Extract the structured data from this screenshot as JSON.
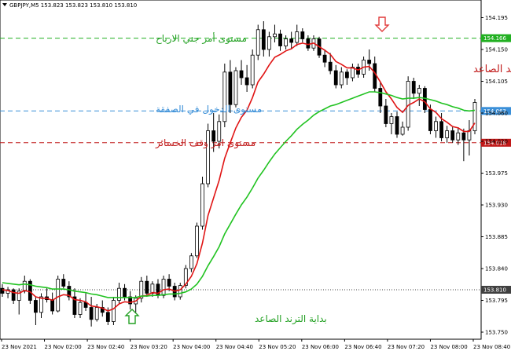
{
  "header": {
    "icon": "chart-menu-icon",
    "title": "GBPJPY,M5 153.823 153.823 153.810 153.810"
  },
  "colors": {
    "bull": "#ffffff",
    "bear": "#000000",
    "ma_fast": "#e01414",
    "ma_slow": "#22c322",
    "tp_line": "#22b022",
    "entry_line": "#3a8fd8",
    "sl_line": "#c01818",
    "current_price": "#404040"
  },
  "chart_data": {
    "type": "candlestick",
    "symbol": "GBPJPY",
    "timeframe": "M5",
    "ylim": [
      153.74,
      154.22
    ],
    "y_ticks": [
      153.75,
      153.795,
      153.84,
      153.885,
      153.93,
      153.975,
      154.02,
      154.06,
      154.105,
      154.15,
      154.195
    ],
    "x_ticks": [
      "23 Nov 2021",
      "23 Nov 02:00",
      "23 Nov 02:40",
      "23 Nov 03:20",
      "23 Nov 04:00",
      "23 Nov 04:40",
      "23 Nov 05:20",
      "23 Nov 06:00",
      "23 Nov 06:40",
      "23 Nov 07:20",
      "23 Nov 08:00",
      "23 Nov 08:40"
    ],
    "candles": [
      {
        "o": 153.812,
        "h": 153.818,
        "l": 153.8,
        "c": 153.805
      },
      {
        "o": 153.805,
        "h": 153.814,
        "l": 153.798,
        "c": 153.81
      },
      {
        "o": 153.81,
        "h": 153.812,
        "l": 153.79,
        "c": 153.795
      },
      {
        "o": 153.795,
        "h": 153.812,
        "l": 153.775,
        "c": 153.808
      },
      {
        "o": 153.808,
        "h": 153.83,
        "l": 153.805,
        "c": 153.822
      },
      {
        "o": 153.822,
        "h": 153.825,
        "l": 153.79,
        "c": 153.795
      },
      {
        "o": 153.795,
        "h": 153.8,
        "l": 153.76,
        "c": 153.778
      },
      {
        "o": 153.778,
        "h": 153.805,
        "l": 153.77,
        "c": 153.8
      },
      {
        "o": 153.8,
        "h": 153.812,
        "l": 153.792,
        "c": 153.796
      },
      {
        "o": 153.796,
        "h": 153.806,
        "l": 153.775,
        "c": 153.78
      },
      {
        "o": 153.78,
        "h": 153.83,
        "l": 153.778,
        "c": 153.825
      },
      {
        "o": 153.825,
        "h": 153.832,
        "l": 153.812,
        "c": 153.815
      },
      {
        "o": 153.815,
        "h": 153.822,
        "l": 153.795,
        "c": 153.8
      },
      {
        "o": 153.8,
        "h": 153.812,
        "l": 153.77,
        "c": 153.775
      },
      {
        "o": 153.775,
        "h": 153.798,
        "l": 153.77,
        "c": 153.792
      },
      {
        "o": 153.792,
        "h": 153.805,
        "l": 153.78,
        "c": 153.785
      },
      {
        "o": 153.785,
        "h": 153.8,
        "l": 153.758,
        "c": 153.768
      },
      {
        "o": 153.768,
        "h": 153.79,
        "l": 153.765,
        "c": 153.785
      },
      {
        "o": 153.785,
        "h": 153.795,
        "l": 153.772,
        "c": 153.778
      },
      {
        "o": 153.778,
        "h": 153.785,
        "l": 153.76,
        "c": 153.765
      },
      {
        "o": 153.765,
        "h": 153.8,
        "l": 153.76,
        "c": 153.795
      },
      {
        "o": 153.795,
        "h": 153.82,
        "l": 153.79,
        "c": 153.812
      },
      {
        "o": 153.812,
        "h": 153.818,
        "l": 153.795,
        "c": 153.8
      },
      {
        "o": 153.8,
        "h": 153.808,
        "l": 153.782,
        "c": 153.79
      },
      {
        "o": 153.79,
        "h": 153.802,
        "l": 153.778,
        "c": 153.798
      },
      {
        "o": 153.798,
        "h": 153.828,
        "l": 153.792,
        "c": 153.822
      },
      {
        "o": 153.822,
        "h": 153.83,
        "l": 153.8,
        "c": 153.805
      },
      {
        "o": 153.805,
        "h": 153.822,
        "l": 153.8,
        "c": 153.818
      },
      {
        "o": 153.818,
        "h": 153.825,
        "l": 153.798,
        "c": 153.802
      },
      {
        "o": 153.802,
        "h": 153.83,
        "l": 153.798,
        "c": 153.825
      },
      {
        "o": 153.825,
        "h": 153.832,
        "l": 153.808,
        "c": 153.815
      },
      {
        "o": 153.815,
        "h": 153.82,
        "l": 153.795,
        "c": 153.8
      },
      {
        "o": 153.8,
        "h": 153.82,
        "l": 153.796,
        "c": 153.816
      },
      {
        "o": 153.816,
        "h": 153.845,
        "l": 153.812,
        "c": 153.84
      },
      {
        "o": 153.84,
        "h": 153.862,
        "l": 153.835,
        "c": 153.858
      },
      {
        "o": 153.858,
        "h": 153.905,
        "l": 153.855,
        "c": 153.9
      },
      {
        "o": 153.9,
        "h": 153.97,
        "l": 153.895,
        "c": 153.96
      },
      {
        "o": 153.96,
        "h": 154.045,
        "l": 153.955,
        "c": 154.035
      },
      {
        "o": 154.035,
        "h": 154.06,
        "l": 154.005,
        "c": 154.02
      },
      {
        "o": 154.02,
        "h": 154.058,
        "l": 154.01,
        "c": 154.048
      },
      {
        "o": 154.048,
        "h": 154.13,
        "l": 154.04,
        "c": 154.118
      },
      {
        "o": 154.118,
        "h": 154.135,
        "l": 154.06,
        "c": 154.072
      },
      {
        "o": 154.072,
        "h": 154.125,
        "l": 154.068,
        "c": 154.12
      },
      {
        "o": 154.12,
        "h": 154.135,
        "l": 154.1,
        "c": 154.11
      },
      {
        "o": 154.11,
        "h": 154.128,
        "l": 154.09,
        "c": 154.1
      },
      {
        "o": 154.1,
        "h": 154.15,
        "l": 154.095,
        "c": 154.142
      },
      {
        "o": 154.142,
        "h": 154.185,
        "l": 154.135,
        "c": 154.178
      },
      {
        "o": 154.178,
        "h": 154.19,
        "l": 154.14,
        "c": 154.15
      },
      {
        "o": 154.15,
        "h": 154.175,
        "l": 154.14,
        "c": 154.168
      },
      {
        "o": 154.168,
        "h": 154.185,
        "l": 154.16,
        "c": 154.172
      },
      {
        "o": 154.172,
        "h": 154.178,
        "l": 154.148,
        "c": 154.155
      },
      {
        "o": 154.155,
        "h": 154.17,
        "l": 154.15,
        "c": 154.165
      },
      {
        "o": 154.165,
        "h": 154.175,
        "l": 154.15,
        "c": 154.16
      },
      {
        "o": 154.16,
        "h": 154.185,
        "l": 154.155,
        "c": 154.175
      },
      {
        "o": 154.175,
        "h": 154.18,
        "l": 154.16,
        "c": 154.165
      },
      {
        "o": 154.165,
        "h": 154.17,
        "l": 154.148,
        "c": 154.152
      },
      {
        "o": 154.152,
        "h": 154.17,
        "l": 154.148,
        "c": 154.165
      },
      {
        "o": 154.165,
        "h": 154.168,
        "l": 154.138,
        "c": 154.142
      },
      {
        "o": 154.142,
        "h": 154.15,
        "l": 154.125,
        "c": 154.132
      },
      {
        "o": 154.132,
        "h": 154.145,
        "l": 154.115,
        "c": 154.12
      },
      {
        "o": 154.12,
        "h": 154.128,
        "l": 154.095,
        "c": 154.1
      },
      {
        "o": 154.1,
        "h": 154.125,
        "l": 154.095,
        "c": 154.118
      },
      {
        "o": 154.118,
        "h": 154.122,
        "l": 154.1,
        "c": 154.11
      },
      {
        "o": 154.11,
        "h": 154.13,
        "l": 154.105,
        "c": 154.125
      },
      {
        "o": 154.125,
        "h": 154.13,
        "l": 154.11,
        "c": 154.115
      },
      {
        "o": 154.115,
        "h": 154.14,
        "l": 154.11,
        "c": 154.135
      },
      {
        "o": 154.135,
        "h": 154.15,
        "l": 154.12,
        "c": 154.13
      },
      {
        "o": 154.13,
        "h": 154.14,
        "l": 154.09,
        "c": 154.095
      },
      {
        "o": 154.095,
        "h": 154.105,
        "l": 154.06,
        "c": 154.07
      },
      {
        "o": 154.07,
        "h": 154.08,
        "l": 154.04,
        "c": 154.045
      },
      {
        "o": 154.045,
        "h": 154.06,
        "l": 154.03,
        "c": 154.055
      },
      {
        "o": 154.055,
        "h": 154.062,
        "l": 154.025,
        "c": 154.03
      },
      {
        "o": 154.03,
        "h": 154.048,
        "l": 154.028,
        "c": 154.04
      },
      {
        "o": 154.04,
        "h": 154.112,
        "l": 154.035,
        "c": 154.105
      },
      {
        "o": 154.105,
        "h": 154.11,
        "l": 154.08,
        "c": 154.088
      },
      {
        "o": 154.088,
        "h": 154.1,
        "l": 154.07,
        "c": 154.095
      },
      {
        "o": 154.095,
        "h": 154.098,
        "l": 154.06,
        "c": 154.065
      },
      {
        "o": 154.065,
        "h": 154.072,
        "l": 154.03,
        "c": 154.035
      },
      {
        "o": 154.035,
        "h": 154.055,
        "l": 154.025,
        "c": 154.048
      },
      {
        "o": 154.048,
        "h": 154.06,
        "l": 154.02,
        "c": 154.025
      },
      {
        "o": 154.025,
        "h": 154.042,
        "l": 154.018,
        "c": 154.035
      },
      {
        "o": 154.035,
        "h": 154.04,
        "l": 154.018,
        "c": 154.022
      },
      {
        "o": 154.022,
        "h": 154.04,
        "l": 154.015,
        "c": 154.032
      },
      {
        "o": 154.032,
        "h": 154.038,
        "l": 153.992,
        "c": 154.022
      },
      {
        "o": 154.022,
        "h": 154.05,
        "l": 154.0,
        "c": 154.035
      },
      {
        "o": 154.035,
        "h": 154.08,
        "l": 154.03,
        "c": 154.075
      }
    ],
    "series": [
      {
        "name": "",
        "color": "#e01414",
        "values": [
          153.81,
          153.809,
          153.806,
          153.805,
          153.809,
          153.807,
          153.8,
          153.798,
          153.798,
          153.795,
          153.8,
          153.803,
          153.802,
          153.796,
          153.795,
          153.793,
          153.787,
          153.786,
          153.784,
          153.78,
          153.783,
          153.79,
          153.793,
          153.792,
          153.794,
          153.801,
          153.802,
          153.806,
          153.805,
          153.81,
          153.811,
          153.808,
          153.81,
          153.818,
          153.829,
          153.847,
          153.876,
          153.915,
          153.94,
          153.965,
          153.996,
          154.018,
          154.039,
          154.054,
          154.064,
          154.082,
          154.104,
          154.115,
          154.128,
          154.139,
          154.143,
          154.148,
          154.151,
          154.157,
          154.159,
          154.157,
          154.159,
          154.154,
          154.149,
          154.143,
          154.133,
          154.129,
          154.124,
          154.124,
          154.121,
          154.125,
          154.126,
          154.117,
          154.104,
          154.09,
          154.08,
          154.068,
          154.061,
          154.071,
          154.075,
          154.08,
          154.076,
          154.066,
          154.061,
          154.052,
          154.047,
          154.041,
          154.039,
          154.034,
          154.034,
          154.046
        ]
      },
      {
        "name": "",
        "color": "#22c322",
        "values": [
          153.82,
          153.819,
          153.818,
          153.817,
          153.818,
          153.817,
          153.815,
          153.814,
          153.813,
          153.811,
          153.811,
          153.811,
          153.81,
          153.808,
          153.807,
          153.806,
          153.804,
          153.803,
          153.801,
          153.799,
          153.799,
          153.799,
          153.799,
          153.799,
          153.799,
          153.801,
          153.801,
          153.802,
          153.802,
          153.803,
          153.804,
          153.804,
          153.805,
          153.807,
          153.811,
          153.818,
          153.829,
          153.844,
          153.857,
          153.871,
          153.889,
          153.903,
          153.917,
          153.93,
          153.941,
          153.954,
          153.968,
          153.979,
          153.991,
          154.002,
          154.011,
          154.02,
          154.028,
          154.037,
          154.044,
          154.05,
          154.057,
          154.062,
          154.066,
          154.07,
          154.072,
          154.075,
          154.078,
          154.081,
          154.084,
          154.087,
          154.09,
          154.09,
          154.089,
          154.087,
          154.085,
          154.082,
          154.08,
          154.081,
          154.081,
          154.082,
          154.081,
          154.079,
          154.077,
          154.074,
          154.072,
          154.069,
          154.067,
          154.064,
          154.063,
          154.064
        ]
      }
    ],
    "price_lines": [
      {
        "price": 154.166,
        "label": "154.166",
        "color": "#22b022"
      },
      {
        "price": 154.063,
        "label": "154.063",
        "color": "#3a8fd8"
      },
      {
        "price": 154.018,
        "label": "154.018",
        "color": "#c01818"
      },
      {
        "price": 153.81,
        "label": "153.810",
        "color": "#404040"
      }
    ],
    "annotations": {
      "take_profit": "مستوى أمر جني الارباح",
      "entry": "مستوى الدخول في الصفقة",
      "stop_loss": "مستوى امر وقف الخسائر",
      "trend_end": "نهاية الترند الصاعد",
      "trend_start": "بداية الترند الصاعد"
    }
  }
}
